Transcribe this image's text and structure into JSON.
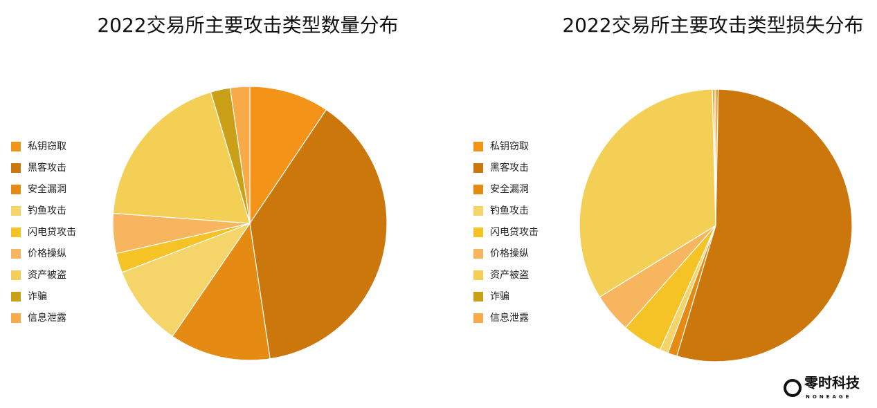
{
  "chart_data": [
    {
      "type": "pie",
      "title": "2022交易所主要攻击类型数量分布",
      "categories": [
        "私钥窃取",
        "黑客攻击",
        "安全漏洞",
        "钓鱼攻击",
        "闪电贷攻击",
        "价格操纵",
        "资产被盗",
        "诈骗",
        "信息泄露"
      ],
      "values": [
        9.4,
        38.2,
        11.9,
        9.6,
        2.3,
        4.7,
        19.2,
        2.3,
        2.3
      ],
      "colors": [
        "#f39318",
        "#cc770c",
        "#e58b14",
        "#f5d56a",
        "#f5c325",
        "#f8b55f",
        "#f4cf55",
        "#c9a017",
        "#f8a948"
      ],
      "legend": "left"
    },
    {
      "type": "pie",
      "title": "2022交易所主要攻击类型损失分布",
      "categories": [
        "私钥窃取",
        "黑客攻击",
        "安全漏洞",
        "钓鱼攻击",
        "闪电贷攻击",
        "价格操纵",
        "资产被盗",
        "诈骗",
        "信息泄露"
      ],
      "values": [
        0.3,
        54.3,
        1.1,
        1.0,
        4.8,
        4.7,
        33.4,
        0.2,
        0.2
      ],
      "colors": [
        "#f39318",
        "#cc770c",
        "#e58b14",
        "#f5d56a",
        "#f5c325",
        "#f8b55f",
        "#f4cf55",
        "#c9a017",
        "#f8a948"
      ],
      "legend": "left"
    }
  ],
  "logo": {
    "name": "零时科技",
    "sub": "NONEAGE"
  }
}
